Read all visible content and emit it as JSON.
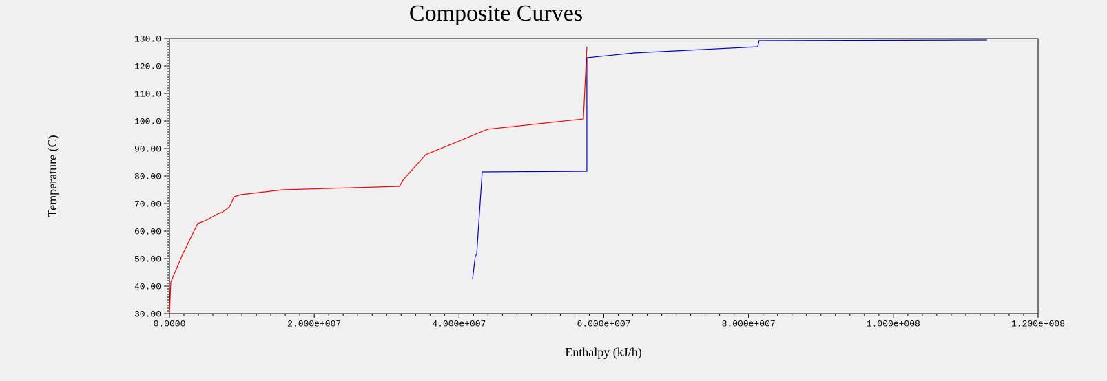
{
  "chart_data": {
    "type": "line",
    "title": "Composite Curves",
    "x_label": "Enthalpy (kJ/h)",
    "y_label": "Temperature (C)",
    "xlim": [
      0,
      120000000
    ],
    "ylim": [
      30,
      130
    ],
    "xticks": [
      {
        "value": 0,
        "label": "0.0000"
      },
      {
        "value": 20000000,
        "label": "2.000e+007"
      },
      {
        "value": 40000000,
        "label": "4.000e+007"
      },
      {
        "value": 60000000,
        "label": "6.000e+007"
      },
      {
        "value": 80000000,
        "label": "8.000e+007"
      },
      {
        "value": 100000000,
        "label": "1.000e+008"
      },
      {
        "value": 120000000,
        "label": "1.200e+008"
      }
    ],
    "yticks": [
      {
        "value": 30,
        "label": "30.00"
      },
      {
        "value": 40,
        "label": "40.00"
      },
      {
        "value": 50,
        "label": "50.00"
      },
      {
        "value": 60,
        "label": "60.00"
      },
      {
        "value": 70,
        "label": "70.00"
      },
      {
        "value": 80,
        "label": "80.00"
      },
      {
        "value": 90,
        "label": "90.00"
      },
      {
        "value": 100,
        "label": "100.0"
      },
      {
        "value": 110,
        "label": "110.0"
      },
      {
        "value": 120,
        "label": "120.0"
      },
      {
        "value": 130,
        "label": "130.0"
      }
    ],
    "series": [
      {
        "color": "#ff0000",
        "x": [
          0,
          190000,
          1810000,
          3900000,
          4950000,
          6850000,
          7230000,
          8280000,
          8940000,
          9900000,
          15600000,
          31780000,
          32260000,
          35390000,
          43960000,
          57180000,
          57660000
        ],
        "values": [
          30,
          41.5,
          51.5,
          62.75,
          63.75,
          66.5,
          66.75,
          68.75,
          72.5,
          73.25,
          75,
          76.25,
          78.5,
          87.75,
          97,
          100.75,
          127
        ]
      },
      {
        "color": "#0000cc",
        "x": [
          41870000,
          42250000,
          42440000,
          43200000,
          57660000,
          57660000,
          64130000,
          81260000,
          81450000,
          112940000
        ],
        "values": [
          42.5,
          51,
          51.5,
          81.5,
          81.75,
          123,
          124.75,
          127,
          129.25,
          129.5
        ]
      }
    ]
  }
}
